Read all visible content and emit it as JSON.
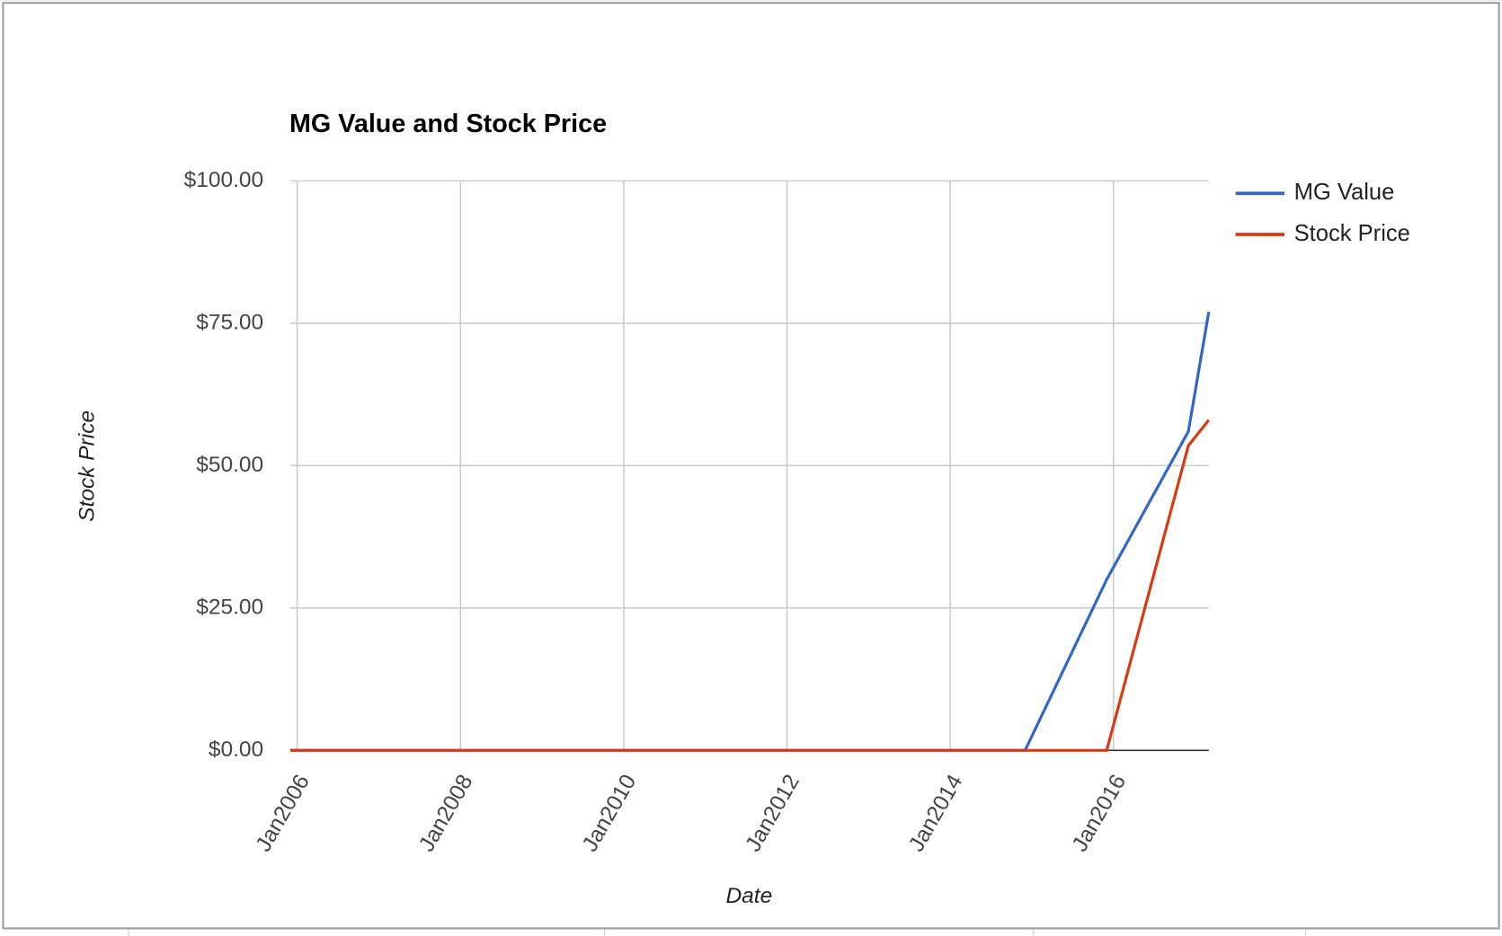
{
  "chart_data": {
    "type": "line",
    "title": "MG Value and Stock Price",
    "x_label": "Date",
    "y_label": "Stock Price",
    "x": [
      "2005-12",
      "2006-12",
      "2007-12",
      "2008-12",
      "2009-12",
      "2010-12",
      "2011-12",
      "2012-12",
      "2013-12",
      "2014-12",
      "2015-12",
      "2016-12",
      "2017-03"
    ],
    "series": [
      {
        "name": "MG Value",
        "color": "#3366cc",
        "values": [
          0,
          0,
          0,
          0,
          0,
          0,
          0,
          0,
          0,
          0,
          30,
          56,
          77
        ]
      },
      {
        "name": "Stock Price",
        "color": "#dc3912",
        "values": [
          0,
          0,
          0,
          0,
          0,
          0,
          0,
          0,
          0,
          0,
          0,
          53.5,
          58
        ]
      }
    ],
    "xlim": [
      "2005-12",
      "2017-03"
    ],
    "xticks": [
      {
        "value": "2006-01",
        "label": "Jan2006"
      },
      {
        "value": "2008-01",
        "label": "Jan2008"
      },
      {
        "value": "2010-01",
        "label": "Jan2010"
      },
      {
        "value": "2012-01",
        "label": "Jan2012"
      },
      {
        "value": "2014-01",
        "label": "Jan2014"
      },
      {
        "value": "2016-01",
        "label": "Jan2016"
      }
    ],
    "ylim": [
      0,
      100
    ],
    "yticks": [
      {
        "value": 0,
        "label": "$0.00"
      },
      {
        "value": 25,
        "label": "$25.00"
      },
      {
        "value": 50,
        "label": "$50.00"
      },
      {
        "value": 75,
        "label": "$75.00"
      },
      {
        "value": 100,
        "label": "$100.00"
      }
    ],
    "grid": true,
    "legend": "right"
  }
}
